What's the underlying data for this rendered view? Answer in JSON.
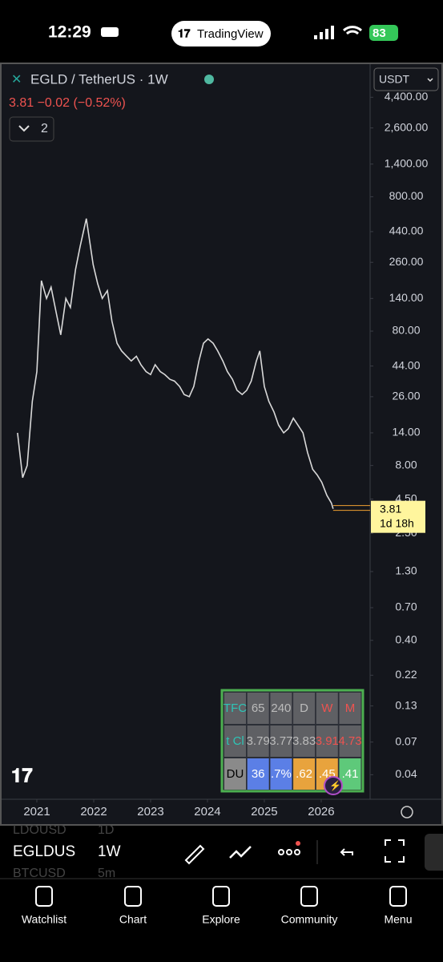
{
  "status_bar": {
    "time": "12:29",
    "app": "TradingView",
    "battery": "83"
  },
  "header": {
    "symbol": "EGLD / TetherUS · 1W",
    "quote": "3.81 −0.02 (−0.52%)",
    "indicators": "2",
    "currency": "USDT"
  },
  "chart_data": {
    "type": "line",
    "color": "#d9d9d9",
    "log_scale": true,
    "x": [
      2020.66,
      2020.75,
      2020.83,
      2020.92,
      2021.0,
      2021.08,
      2021.17,
      2021.25,
      2021.34,
      2021.42,
      2021.51,
      2021.59,
      2021.68,
      2021.76,
      2021.87,
      2021.99,
      2022.07,
      2022.15,
      2022.24,
      2022.32,
      2022.41,
      2022.49,
      2022.58,
      2022.66,
      2022.75,
      2022.83,
      2022.92,
      2023.0,
      2023.08,
      2023.17,
      2023.25,
      2023.34,
      2023.42,
      2023.51,
      2023.59,
      2023.68,
      2023.76,
      2023.85,
      2023.93,
      2024.01,
      2024.1,
      2024.18,
      2024.27,
      2024.35,
      2024.44,
      2024.52,
      2024.61,
      2024.69,
      2024.77,
      2024.86,
      2024.92,
      2025.0,
      2025.08,
      2025.17,
      2025.25,
      2025.34,
      2025.42,
      2025.51,
      2025.59,
      2025.68,
      2025.76,
      2025.85,
      2025.93,
      2026.01,
      2026.1,
      2026.18,
      2026.21
    ],
    "values": [
      14,
      6.5,
      8,
      24,
      40,
      190,
      140,
      170,
      110,
      75,
      140,
      120,
      230,
      340,
      550,
      250,
      180,
      140,
      160,
      95,
      65,
      57,
      52,
      48,
      52,
      45,
      40,
      38,
      45,
      40,
      38,
      35,
      34,
      31,
      27,
      26,
      31,
      48,
      65,
      70,
      65,
      57,
      48,
      40,
      35,
      29,
      27,
      29,
      34,
      48,
      57,
      31,
      24,
      20,
      16,
      14,
      15,
      18,
      16,
      14,
      10,
      7.5,
      6.8,
      6.0,
      4.8,
      4.2,
      3.81
    ],
    "xlim": [
      2020.38,
      2026.86
    ],
    "xticks": [
      2021,
      2022,
      2023,
      2024,
      2025,
      2026
    ],
    "ylim": [
      0.027,
      5000
    ],
    "yticks": [
      {
        "value": 4400,
        "label": "4,400.00"
      },
      {
        "value": 2600,
        "label": "2,600.00"
      },
      {
        "value": 1400,
        "label": "1,400.00"
      },
      {
        "value": 800,
        "label": "800.00"
      },
      {
        "value": 440,
        "label": "440.00"
      },
      {
        "value": 260,
        "label": "260.00"
      },
      {
        "value": 140,
        "label": "140.00"
      },
      {
        "value": 80,
        "label": "80.00"
      },
      {
        "value": 44,
        "label": "44.00"
      },
      {
        "value": 26,
        "label": "26.00"
      },
      {
        "value": 14,
        "label": "14.00"
      },
      {
        "value": 8,
        "label": "8.00"
      },
      {
        "value": 4.5,
        "label": "4.50"
      },
      {
        "value": 2.5,
        "label": "2.50"
      },
      {
        "value": 1.3,
        "label": "1.30"
      },
      {
        "value": 0.7,
        "label": "0.70"
      },
      {
        "value": 0.4,
        "label": "0.40"
      },
      {
        "value": 0.22,
        "label": "0.22"
      },
      {
        "value": 0.13,
        "label": "0.13"
      },
      {
        "value": 0.07,
        "label": "0.07"
      },
      {
        "value": 0.04,
        "label": "0.04"
      }
    ],
    "last_price": {
      "price": "3.81",
      "countdown": "1d 18h"
    }
  },
  "table": {
    "rows": [
      [
        "TFC",
        "65",
        "240",
        "D",
        "W",
        "M"
      ],
      [
        "t Cl",
        "3.79",
        "3.77",
        "3.83",
        "3.91",
        "4.73"
      ],
      [
        "DU",
        "36",
        ".7%",
        ".62",
        ".45",
        ".41"
      ]
    ]
  },
  "symbols": [
    {
      "name": "LDOUSD",
      "interval": "1D"
    },
    {
      "name": "EGLDUS",
      "interval": "1W"
    },
    {
      "name": "BTCUSD",
      "interval": "5m"
    }
  ],
  "nav": [
    "Watchlist",
    "Chart",
    "Explore",
    "Community",
    "Menu"
  ]
}
